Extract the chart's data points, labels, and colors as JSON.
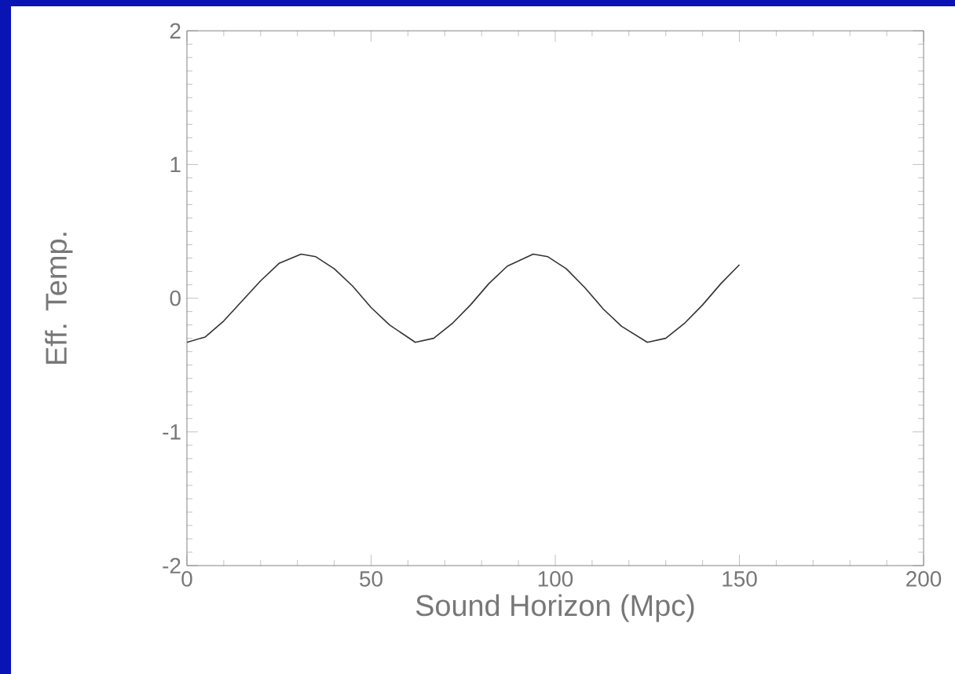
{
  "chart_data": {
    "type": "line",
    "xlabel": "Sound Horizon (Mpc)",
    "ylabel": "Eff. Temp.",
    "x": [
      0,
      5,
      10,
      15,
      20,
      25,
      31,
      35,
      40,
      45,
      50,
      55,
      62,
      67,
      72,
      77,
      82,
      87,
      94,
      98,
      103,
      108,
      113,
      118,
      125,
      130,
      135,
      140,
      145,
      150
    ],
    "series": [
      {
        "color": "#333333",
        "values": [
          -0.33,
          -0.29,
          -0.17,
          -0.02,
          0.13,
          0.26,
          0.33,
          0.31,
          0.22,
          0.09,
          -0.07,
          -0.2,
          -0.33,
          -0.3,
          -0.19,
          -0.05,
          0.11,
          0.24,
          0.33,
          0.31,
          0.22,
          0.08,
          -0.08,
          -0.21,
          -0.33,
          -0.3,
          -0.19,
          -0.05,
          0.11,
          0.25
        ]
      }
    ],
    "xlim": [
      0,
      200
    ],
    "ylim": [
      -2,
      2
    ],
    "xticks": [
      0,
      50,
      100,
      150,
      200
    ],
    "yticks": [
      -2,
      -1,
      0,
      1,
      2
    ],
    "grid": false,
    "marker": "none",
    "line_style": "solid"
  }
}
